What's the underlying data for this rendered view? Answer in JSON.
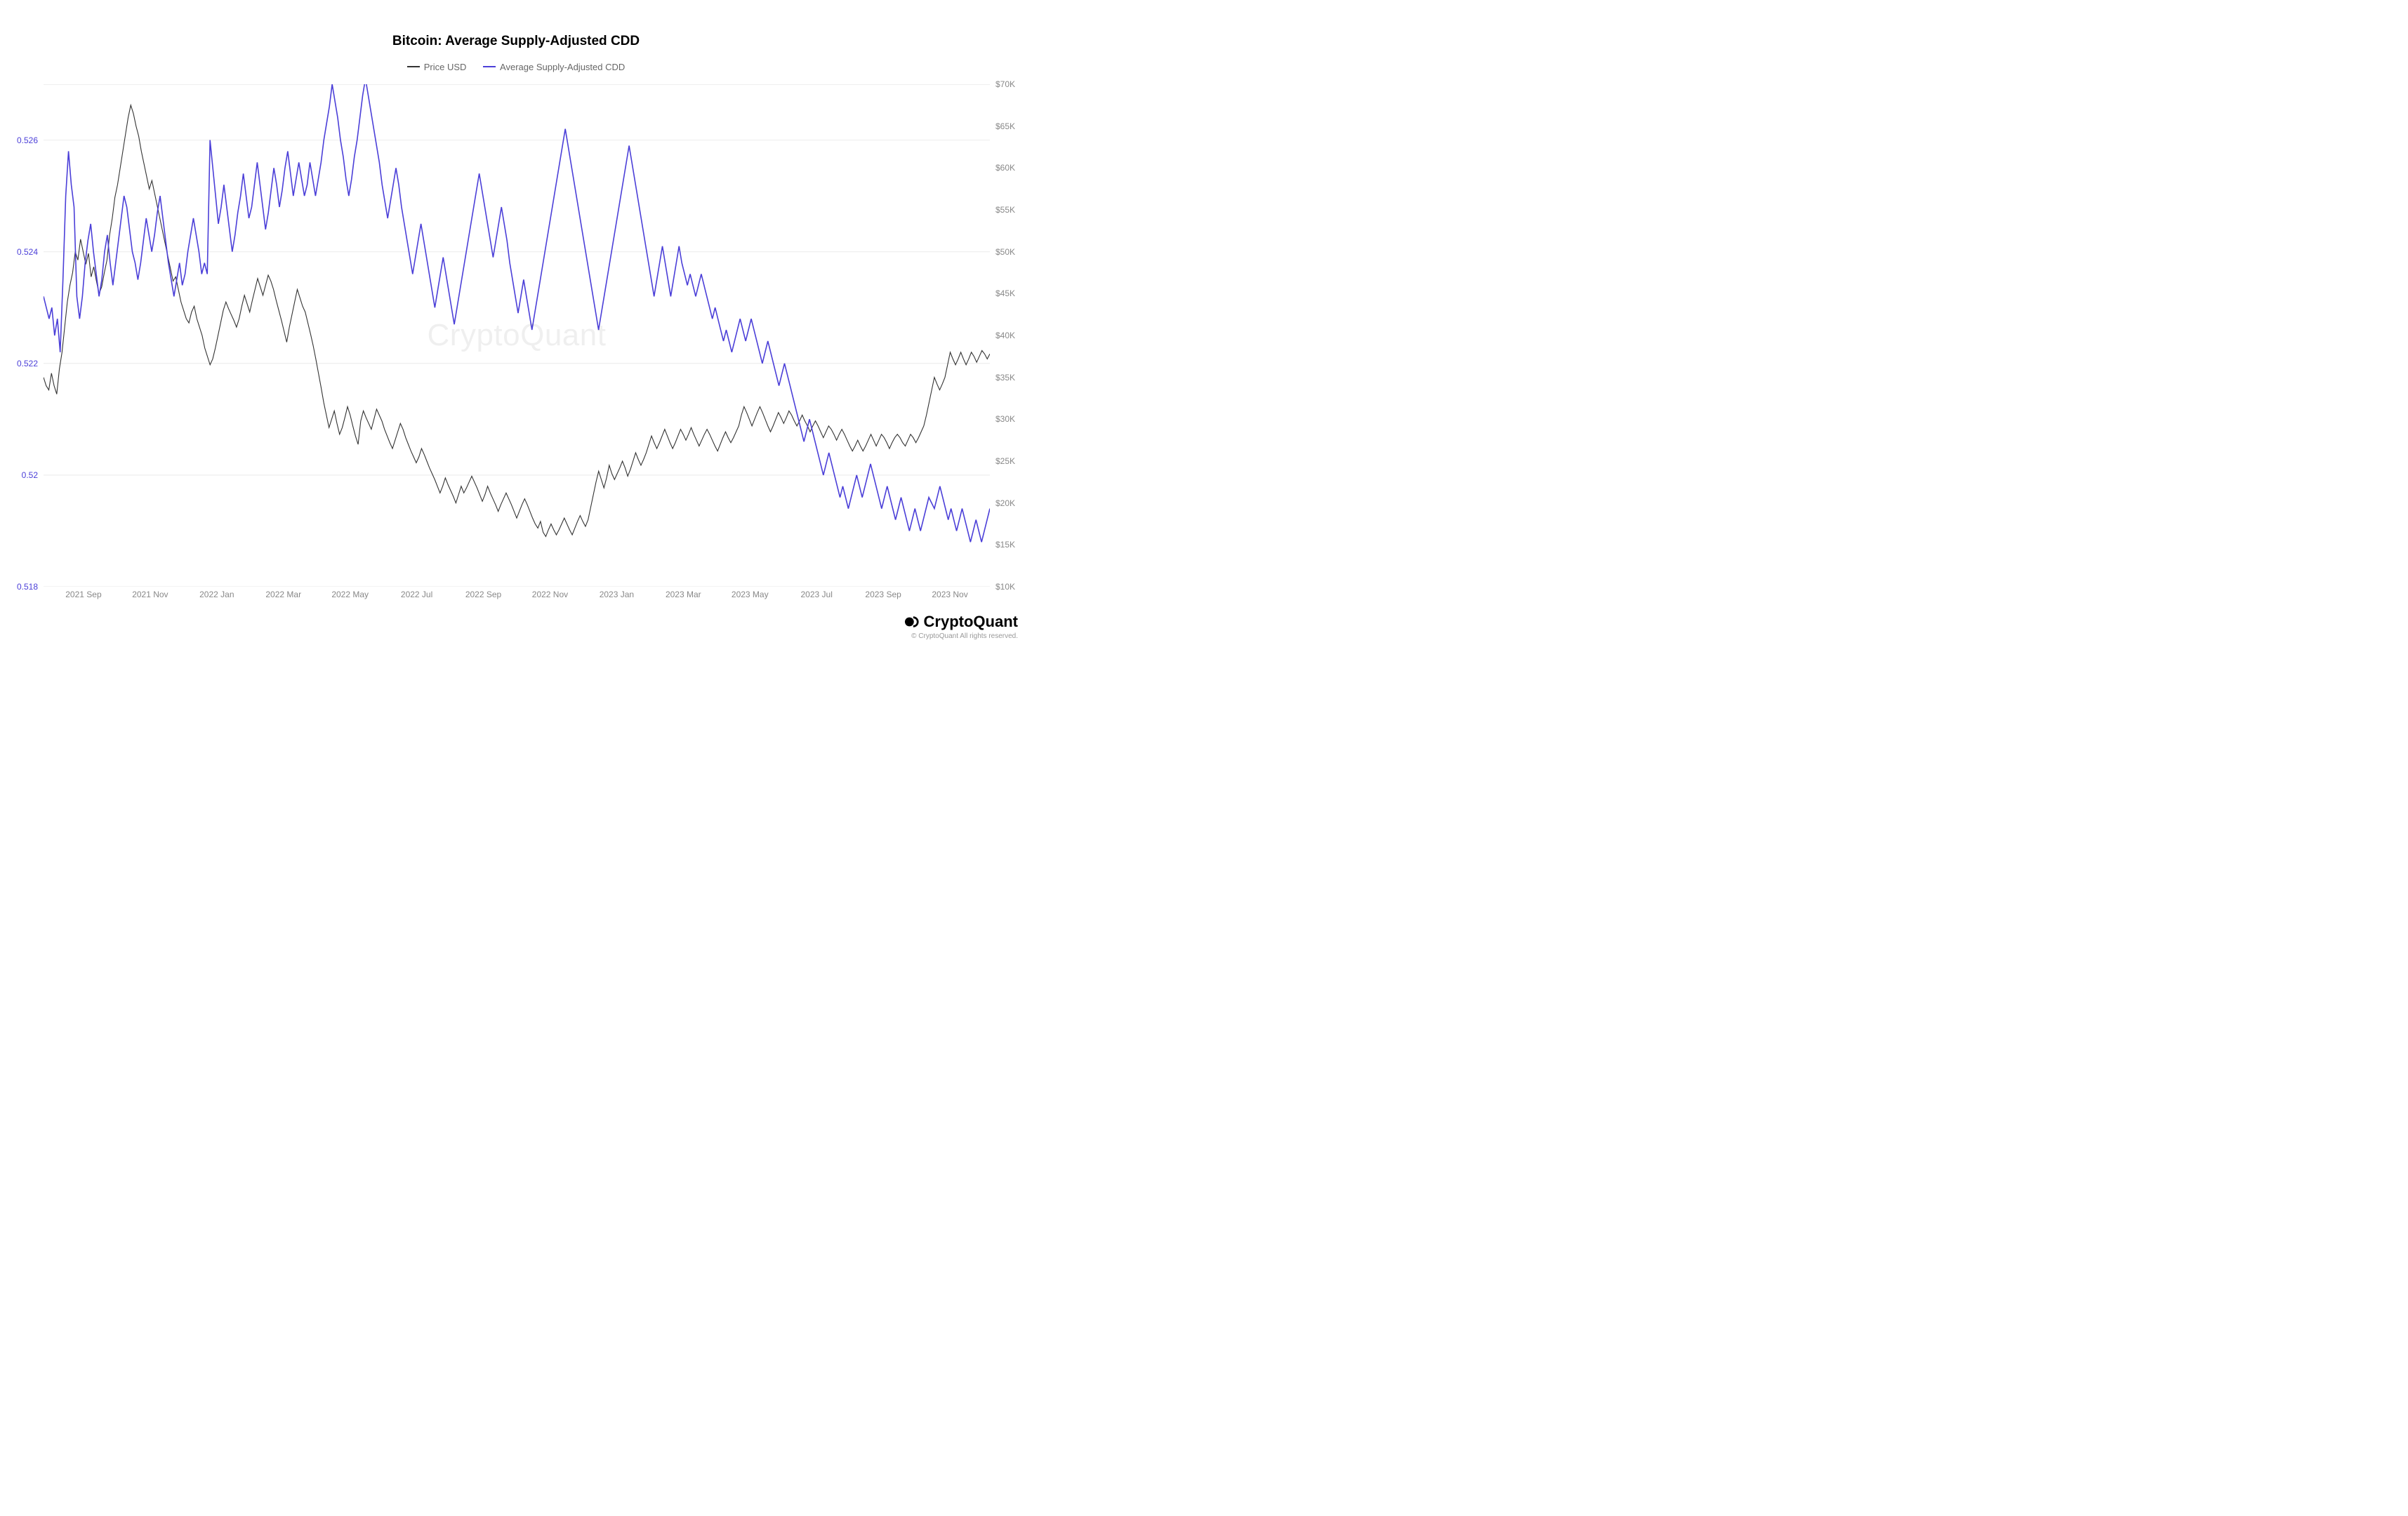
{
  "chart": {
    "type": "line-dual-axis",
    "title": "Bitcoin: Average Supply-Adjusted CDD",
    "title_fontsize": 19,
    "background_color": "#ffffff",
    "grid_color": "#eeeeee",
    "watermark_text": "CryptoQuant",
    "legend": [
      {
        "label": "Price USD",
        "color": "#333333"
      },
      {
        "label": "Average Supply-Adjusted CDD",
        "color": "#4b3fd8"
      }
    ],
    "x_axis": {
      "ticks": [
        "2021 Sep",
        "2021 Nov",
        "2022 Jan",
        "2022 Mar",
        "2022 May",
        "2022 Jul",
        "2022 Sep",
        "2022 Nov",
        "2023 Jan",
        "2023 Mar",
        "2023 May",
        "2023 Jul",
        "2023 Sep",
        "2023 Nov"
      ],
      "tick_color": "#888888",
      "tick_fontsize": 12
    },
    "y_left": {
      "min": 0.518,
      "max": 0.527,
      "ticks": [
        0.518,
        0.52,
        0.522,
        0.524,
        0.526
      ],
      "color": "#4b3fd8",
      "fontsize": 12
    },
    "y_right": {
      "min": 10000,
      "max": 70000,
      "ticks": [
        10000,
        15000,
        20000,
        25000,
        30000,
        35000,
        40000,
        45000,
        50000,
        55000,
        60000,
        65000,
        70000
      ],
      "tick_labels": [
        "$10K",
        "$15K",
        "$20K",
        "$25K",
        "$30K",
        "$35K",
        "$40K",
        "$45K",
        "$50K",
        "$55K",
        "$60K",
        "$65K",
        "$70K"
      ],
      "color": "#888888",
      "fontsize": 12
    },
    "series": {
      "price_usd": {
        "color": "#333333",
        "line_width": 1.1,
        "axis": "right",
        "data": [
          35000,
          34000,
          33500,
          35500,
          34000,
          33000,
          36000,
          38000,
          41000,
          44000,
          46000,
          47500,
          50000,
          49000,
          51500,
          50000,
          48500,
          49800,
          47000,
          48200,
          46500,
          45000,
          45800,
          47500,
          49000,
          52000,
          54000,
          56500,
          58000,
          60000,
          62000,
          64000,
          66000,
          67500,
          66500,
          65000,
          63800,
          62000,
          60500,
          59000,
          57500,
          58500,
          57000,
          55500,
          54000,
          52500,
          51000,
          49500,
          48000,
          46500,
          47000,
          45500,
          44000,
          43000,
          42000,
          41500,
          42800,
          43500,
          42000,
          41000,
          40000,
          38500,
          37500,
          36500,
          37200,
          38500,
          40000,
          41500,
          43000,
          44000,
          43200,
          42500,
          41800,
          41000,
          42000,
          43500,
          44800,
          43800,
          42800,
          44200,
          45500,
          46800,
          45800,
          44800,
          46000,
          47200,
          46500,
          45500,
          44200,
          43000,
          41800,
          40500,
          39200,
          41000,
          42500,
          44000,
          45500,
          44500,
          43500,
          42800,
          41500,
          40200,
          38800,
          37200,
          35500,
          33800,
          32000,
          30500,
          29000,
          30000,
          31000,
          29500,
          28200,
          29000,
          30200,
          31500,
          30500,
          29200,
          28000,
          27000,
          29800,
          31000,
          30200,
          29500,
          28800,
          30000,
          31200,
          30500,
          29800,
          28800,
          28000,
          27200,
          26500,
          27500,
          28500,
          29500,
          28800,
          27800,
          27000,
          26200,
          25500,
          24800,
          25500,
          26500,
          25800,
          25000,
          24200,
          23500,
          22800,
          22000,
          21200,
          22000,
          23000,
          22200,
          21500,
          20800,
          20000,
          21000,
          22000,
          21200,
          21800,
          22500,
          23200,
          22500,
          21800,
          21000,
          20200,
          21000,
          22000,
          21200,
          20500,
          19800,
          19000,
          19800,
          20500,
          21200,
          20500,
          19800,
          19000,
          18200,
          19000,
          19800,
          20500,
          19800,
          19000,
          18200,
          17500,
          17000,
          17800,
          16500,
          16000,
          16800,
          17500,
          16800,
          16200,
          16800,
          17500,
          18200,
          17500,
          16800,
          16200,
          17000,
          17800,
          18500,
          17800,
          17200,
          18000,
          19500,
          21000,
          22500,
          23800,
          22800,
          21800,
          23000,
          24500,
          23500,
          22800,
          23500,
          24200,
          25000,
          24200,
          23200,
          24000,
          25000,
          26000,
          25200,
          24500,
          25200,
          26000,
          27000,
          28000,
          27200,
          26500,
          27200,
          28000,
          28800,
          28000,
          27200,
          26500,
          27200,
          28000,
          28800,
          28200,
          27500,
          28200,
          29000,
          28200,
          27500,
          26800,
          27500,
          28200,
          28800,
          28200,
          27500,
          26800,
          26200,
          27000,
          27800,
          28500,
          27800,
          27200,
          27800,
          28500,
          29200,
          30500,
          31500,
          30800,
          30000,
          29200,
          30000,
          30800,
          31500,
          30800,
          30000,
          29200,
          28500,
          29200,
          30000,
          30800,
          30200,
          29500,
          30200,
          31000,
          30500,
          29800,
          29200,
          29800,
          30500,
          29800,
          29200,
          28500,
          29200,
          29800,
          29200,
          28500,
          27800,
          28500,
          29200,
          28800,
          28200,
          27500,
          28200,
          28800,
          28200,
          27500,
          26800,
          26200,
          26800,
          27500,
          26800,
          26200,
          26800,
          27500,
          28200,
          27500,
          26800,
          27500,
          28200,
          27800,
          27200,
          26500,
          27200,
          27800,
          28200,
          27800,
          27200,
          26800,
          27500,
          28200,
          27800,
          27200,
          27800,
          28500,
          29200,
          30500,
          32000,
          33500,
          35000,
          34200,
          33500,
          34200,
          35000,
          36500,
          38000,
          37200,
          36500,
          37200,
          38000,
          37200,
          36500,
          37200,
          38000,
          37500,
          36800,
          37500,
          38200,
          37800,
          37200,
          37800
        ]
      },
      "cdd": {
        "color": "#4b3fd8",
        "line_width": 1.6,
        "axis": "left",
        "data": [
          0.5232,
          0.523,
          0.5228,
          0.523,
          0.5225,
          0.5228,
          0.5222,
          0.5235,
          0.525,
          0.5258,
          0.5252,
          0.5248,
          0.5232,
          0.5228,
          0.5232,
          0.5238,
          0.5242,
          0.5245,
          0.524,
          0.5236,
          0.5232,
          0.5235,
          0.524,
          0.5243,
          0.5238,
          0.5234,
          0.5238,
          0.5242,
          0.5246,
          0.525,
          0.5248,
          0.5244,
          0.524,
          0.5238,
          0.5235,
          0.5238,
          0.5242,
          0.5246,
          0.5243,
          0.524,
          0.5243,
          0.5247,
          0.525,
          0.5246,
          0.5242,
          0.5238,
          0.5235,
          0.5232,
          0.5235,
          0.5238,
          0.5234,
          0.5236,
          0.524,
          0.5243,
          0.5246,
          0.5243,
          0.524,
          0.5236,
          0.5238,
          0.5236,
          0.526,
          0.5255,
          0.525,
          0.5245,
          0.5248,
          0.5252,
          0.5248,
          0.5244,
          0.524,
          0.5243,
          0.5247,
          0.525,
          0.5254,
          0.525,
          0.5246,
          0.5248,
          0.5252,
          0.5256,
          0.5252,
          0.5248,
          0.5244,
          0.5247,
          0.5251,
          0.5255,
          0.5252,
          0.5248,
          0.5251,
          0.5255,
          0.5258,
          0.5254,
          0.525,
          0.5253,
          0.5256,
          0.5253,
          0.525,
          0.5252,
          0.5256,
          0.5253,
          0.525,
          0.5253,
          0.5256,
          0.526,
          0.5263,
          0.5266,
          0.527,
          0.5267,
          0.5264,
          0.526,
          0.5257,
          0.5253,
          0.525,
          0.5253,
          0.5257,
          0.526,
          0.5264,
          0.5268,
          0.5271,
          0.5268,
          0.5265,
          0.5262,
          0.5259,
          0.5256,
          0.5252,
          0.5249,
          0.5246,
          0.5249,
          0.5252,
          0.5255,
          0.5252,
          0.5248,
          0.5245,
          0.5242,
          0.5239,
          0.5236,
          0.5239,
          0.5242,
          0.5245,
          0.5242,
          0.5239,
          0.5236,
          0.5233,
          0.523,
          0.5233,
          0.5236,
          0.5239,
          0.5236,
          0.5233,
          0.523,
          0.5227,
          0.523,
          0.5233,
          0.5236,
          0.5239,
          0.5242,
          0.5245,
          0.5248,
          0.5251,
          0.5254,
          0.5251,
          0.5248,
          0.5245,
          0.5242,
          0.5239,
          0.5242,
          0.5245,
          0.5248,
          0.5245,
          0.5242,
          0.5238,
          0.5235,
          0.5232,
          0.5229,
          0.5232,
          0.5235,
          0.5232,
          0.5229,
          0.5226,
          0.5229,
          0.5232,
          0.5235,
          0.5238,
          0.5241,
          0.5244,
          0.5247,
          0.525,
          0.5253,
          0.5256,
          0.5259,
          0.5262,
          0.5259,
          0.5256,
          0.5253,
          0.525,
          0.5247,
          0.5244,
          0.5241,
          0.5238,
          0.5235,
          0.5232,
          0.5229,
          0.5226,
          0.5229,
          0.5232,
          0.5235,
          0.5238,
          0.5241,
          0.5244,
          0.5247,
          0.525,
          0.5253,
          0.5256,
          0.5259,
          0.5256,
          0.5253,
          0.525,
          0.5247,
          0.5244,
          0.5241,
          0.5238,
          0.5235,
          0.5232,
          0.5235,
          0.5238,
          0.5241,
          0.5238,
          0.5235,
          0.5232,
          0.5235,
          0.5238,
          0.5241,
          0.5238,
          0.5236,
          0.5234,
          0.5236,
          0.5234,
          0.5232,
          0.5234,
          0.5236,
          0.5234,
          0.5232,
          0.523,
          0.5228,
          0.523,
          0.5228,
          0.5226,
          0.5224,
          0.5226,
          0.5224,
          0.5222,
          0.5224,
          0.5226,
          0.5228,
          0.5226,
          0.5224,
          0.5226,
          0.5228,
          0.5226,
          0.5224,
          0.5222,
          0.522,
          0.5222,
          0.5224,
          0.5222,
          0.522,
          0.5218,
          0.5216,
          0.5218,
          0.522,
          0.5218,
          0.5216,
          0.5214,
          0.5212,
          0.521,
          0.5208,
          0.5206,
          0.5208,
          0.521,
          0.5208,
          0.5206,
          0.5204,
          0.5202,
          0.52,
          0.5202,
          0.5204,
          0.5202,
          0.52,
          0.5198,
          0.5196,
          0.5198,
          0.5196,
          0.5194,
          0.5196,
          0.5198,
          0.52,
          0.5198,
          0.5196,
          0.5198,
          0.52,
          0.5202,
          0.52,
          0.5198,
          0.5196,
          0.5194,
          0.5196,
          0.5198,
          0.5196,
          0.5194,
          0.5192,
          0.5194,
          0.5196,
          0.5194,
          0.5192,
          0.519,
          0.5192,
          0.5194,
          0.5192,
          0.519,
          0.5192,
          0.5194,
          0.5196,
          0.5195,
          0.5194,
          0.5196,
          0.5198,
          0.5196,
          0.5194,
          0.5192,
          0.5194,
          0.5192,
          0.519,
          0.5192,
          0.5194,
          0.5192,
          0.519,
          0.5188,
          0.519,
          0.5192,
          0.519,
          0.5188,
          0.519,
          0.5192,
          0.5194
        ]
      }
    }
  },
  "footer": {
    "brand": "CryptoQuant",
    "copyright": "© CryptoQuant All rights reserved."
  }
}
